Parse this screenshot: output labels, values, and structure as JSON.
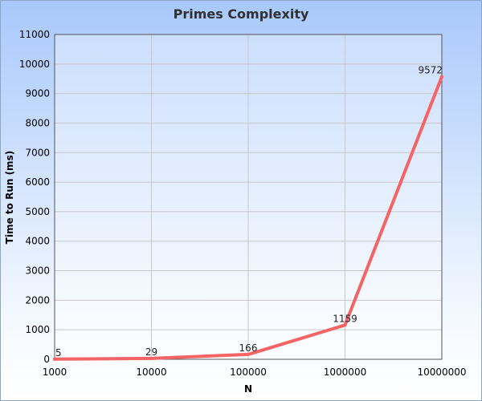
{
  "chart_data": {
    "type": "line",
    "title": "Primes Complexity",
    "xlabel": "N",
    "ylabel": "Time to Run (ms)",
    "x": [
      "1000",
      "10000",
      "100000",
      "1000000",
      "10000000"
    ],
    "series": [
      {
        "values": [
          5,
          29,
          166,
          1159,
          9572
        ]
      }
    ],
    "data_labels": [
      "5",
      "29",
      "166",
      "1159",
      "9572"
    ],
    "y_ticks": [
      "0",
      "1000",
      "2000",
      "3000",
      "4000",
      "5000",
      "6000",
      "7000",
      "8000",
      "9000",
      "10000",
      "11000"
    ],
    "ylim": [
      0,
      11000
    ],
    "x_scale": "log",
    "grid": true,
    "legend": "none",
    "line_color": "#f46464"
  }
}
